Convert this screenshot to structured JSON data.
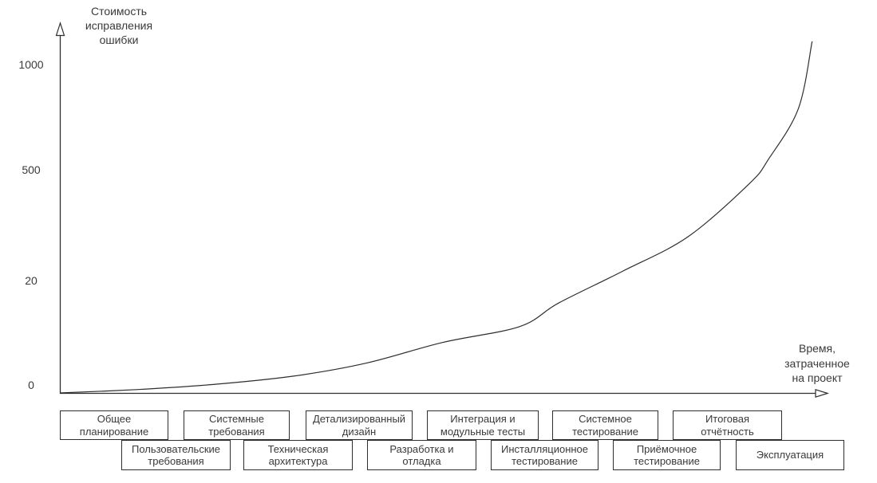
{
  "chart_data": {
    "type": "line",
    "title": "",
    "ylabel": "Стоимость исправления ошибки",
    "xlabel": "Время, затраченное на проект",
    "ylabel_display": "Стоимость\nисправления\nошибки",
    "xlabel_display": "Время,\nзатраченное\nна проект",
    "y_scale": "nonlinear",
    "y_tick_labels": [
      "1000",
      "500",
      "20",
      "0"
    ],
    "y_tick_values": [
      1000,
      500,
      20,
      0
    ],
    "grid": "off",
    "legend": "none",
    "series": [
      {
        "name": "Стоимость исправления ошибки",
        "x_fraction_of_project": [
          0,
          0.1,
          0.2,
          0.305,
          0.4,
          0.5,
          0.6,
          0.651,
          0.735,
          0.82,
          0.9,
          0.925,
          0.964,
          0.982
        ],
        "cost": [
          0,
          0.6,
          1.5,
          3,
          5.3,
          9,
          11.8,
          16,
          61,
          210,
          440,
          550,
          790,
          1110
        ]
      }
    ],
    "phases_row1": [
      "Общее\nпланирование",
      "Системные\nтребования",
      "Детализированный\nдизайн",
      "Интеграция и\nмодульные тесты",
      "Системное\nтестирование",
      "Итоговая\nотчётность"
    ],
    "phases_row2": [
      "Пользовательские\nтребования",
      "Техническая\nархитектура",
      "Разработка и\nотладка",
      "Инсталляционное\nтестирование",
      "Приёмочное\nтестирование",
      "Эксплуатация"
    ]
  },
  "colors": {
    "line": "#2e2e2e",
    "text": "#3a3a3a",
    "box_border": "#2e2e2e",
    "background": "#ffffff"
  }
}
